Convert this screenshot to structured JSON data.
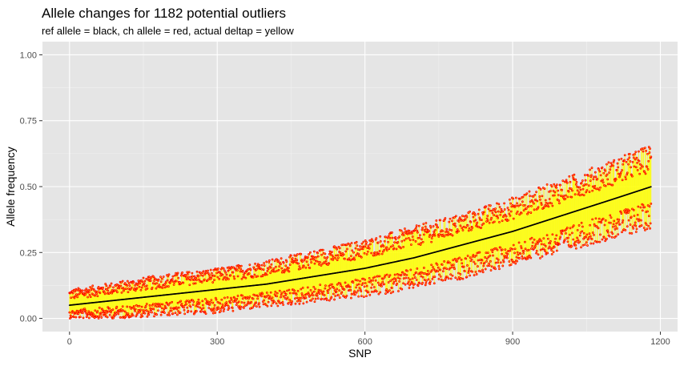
{
  "chart_data": {
    "type": "scatter",
    "title": "Allele changes for 1182 potential outliers",
    "subtitle": "ref allele = black, ch allele = red, actual deltap = yellow",
    "xlabel": "SNP",
    "ylabel": "Allele frequency",
    "xlim": [
      -55,
      1235
    ],
    "ylim": [
      -0.05,
      1.05
    ],
    "x_ticks": [
      0,
      300,
      600,
      900,
      1200
    ],
    "x_tick_labels": [
      "0",
      "300",
      "600",
      "900",
      "1200"
    ],
    "y_ticks": [
      0.0,
      0.25,
      0.5,
      0.75,
      1.0
    ],
    "y_tick_labels": [
      "0.00",
      "0.25",
      "0.50",
      "0.75",
      "1.00"
    ],
    "grid": true,
    "n_points": 1182,
    "background": "#e5e5e5",
    "colors": {
      "ref": "#000000",
      "ch": "#ff0000",
      "deltap": "#ffff00"
    },
    "series": [
      {
        "role": "ref",
        "x": [
          0,
          100,
          200,
          300,
          400,
          500,
          600,
          700,
          800,
          900,
          1000,
          1100,
          1182
        ],
        "values": [
          0.05,
          0.07,
          0.09,
          0.11,
          0.13,
          0.16,
          0.19,
          0.23,
          0.28,
          0.33,
          0.39,
          0.45,
          0.5
        ]
      },
      {
        "role": "ch_upper_envelope",
        "x": [
          0,
          100,
          200,
          300,
          400,
          500,
          600,
          700,
          800,
          900,
          1000,
          1100,
          1182
        ],
        "values": [
          0.11,
          0.14,
          0.17,
          0.19,
          0.22,
          0.26,
          0.3,
          0.35,
          0.4,
          0.46,
          0.53,
          0.6,
          0.66
        ]
      },
      {
        "role": "ch_lower_envelope",
        "x": [
          0,
          100,
          200,
          300,
          400,
          500,
          600,
          700,
          800,
          900,
          1000,
          1100,
          1182
        ],
        "values": [
          0.0,
          0.0,
          0.01,
          0.02,
          0.04,
          0.06,
          0.08,
          0.11,
          0.15,
          0.2,
          0.25,
          0.3,
          0.34
        ]
      }
    ]
  }
}
